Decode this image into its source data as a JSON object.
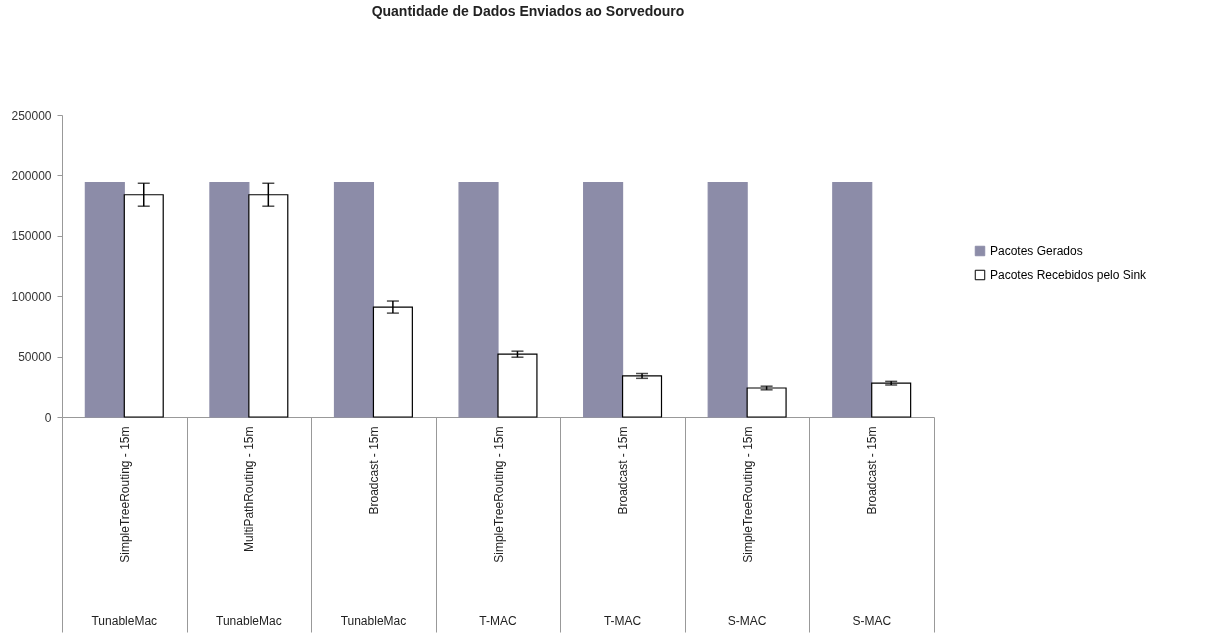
{
  "chart_data": {
    "type": "bar",
    "title": "Quantidade de Dados Enviados ao Sorvedouro",
    "categories": [
      "SimpleTreeRouting - 15m",
      "MultiPathRouting - 15m",
      "Broadcast - 15m",
      "SimpleTreeRouting - 15m",
      "Broadcast - 15m",
      "SimpleTreeRouting - 15m",
      "Broadcast - 15m"
    ],
    "series": [
      {
        "name": "Pacotes Gerados",
        "color": "#8c8ca8",
        "values": [
          194000,
          194000,
          194000,
          194000,
          194000,
          194000,
          194000
        ]
      },
      {
        "name": "Pacotes Recebidos pelo Sink",
        "color": "#ffffff",
        "values": [
          184000,
          184000,
          91000,
          52000,
          34000,
          24000,
          28000
        ],
        "errors": [
          9500,
          9500,
          5000,
          2500,
          2000,
          1500,
          1500
        ]
      }
    ],
    "annotations": [
      "TunableMac",
      "TunableMac",
      "TunableMac",
      "T-MAC",
      "T-MAC",
      "S-MAC",
      "S-MAC"
    ],
    "ylim": [
      0,
      250000
    ],
    "yticks": [
      0,
      50000,
      100000,
      150000,
      200000,
      250000
    ],
    "grid": false,
    "legend": "right"
  }
}
